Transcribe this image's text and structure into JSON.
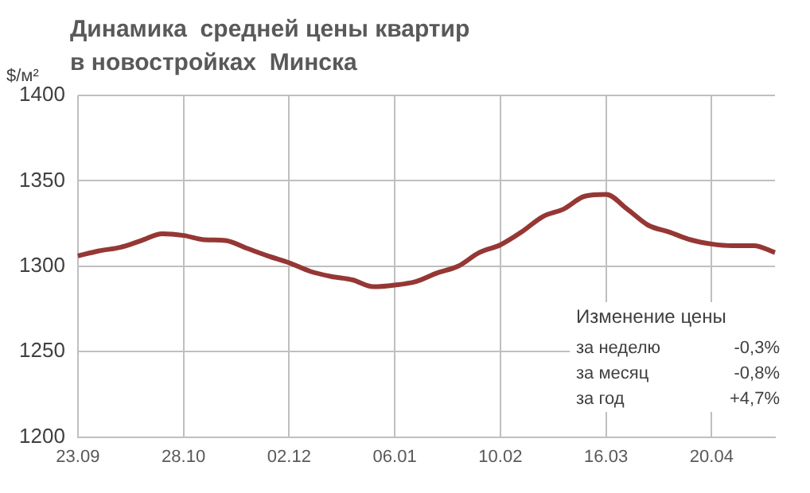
{
  "chart_data": {
    "type": "line",
    "title": "Динамика  средней цены квартир\nв новостройках  Минска",
    "ylabel": "$/м²",
    "categories": [
      "23.09",
      null,
      null,
      null,
      null,
      "28.10",
      null,
      null,
      null,
      null,
      "02.12",
      null,
      null,
      null,
      null,
      "06.01",
      null,
      null,
      null,
      null,
      "10.02",
      null,
      null,
      null,
      null,
      "16.03",
      null,
      null,
      null,
      null,
      "20.04",
      null,
      null,
      null
    ],
    "series": [
      {
        "color": "#953735",
        "values": [
          1306,
          1309,
          1311,
          1315,
          1319,
          1318,
          1315.5,
          1315,
          1310.5,
          1306,
          1302,
          1297,
          1294,
          1292,
          1288,
          1289,
          1291,
          1296,
          1300,
          1308,
          1312.5,
          1320,
          1329,
          1333.5,
          1341,
          1342,
          1333.5,
          1324,
          1320,
          1315.5,
          1313,
          1312,
          1312,
          1308
        ]
      }
    ],
    "ylim": [
      1200,
      1400
    ],
    "yticks": [
      1200,
      1250,
      1300,
      1350,
      1400
    ],
    "grid": true,
    "legend": false,
    "marker": "none",
    "line_style": "solid",
    "annotations": [
      "Изменение цены",
      "за неделю",
      "-0,3%",
      "за месяц",
      "-0,8%",
      "за год",
      "+4,7%"
    ]
  }
}
